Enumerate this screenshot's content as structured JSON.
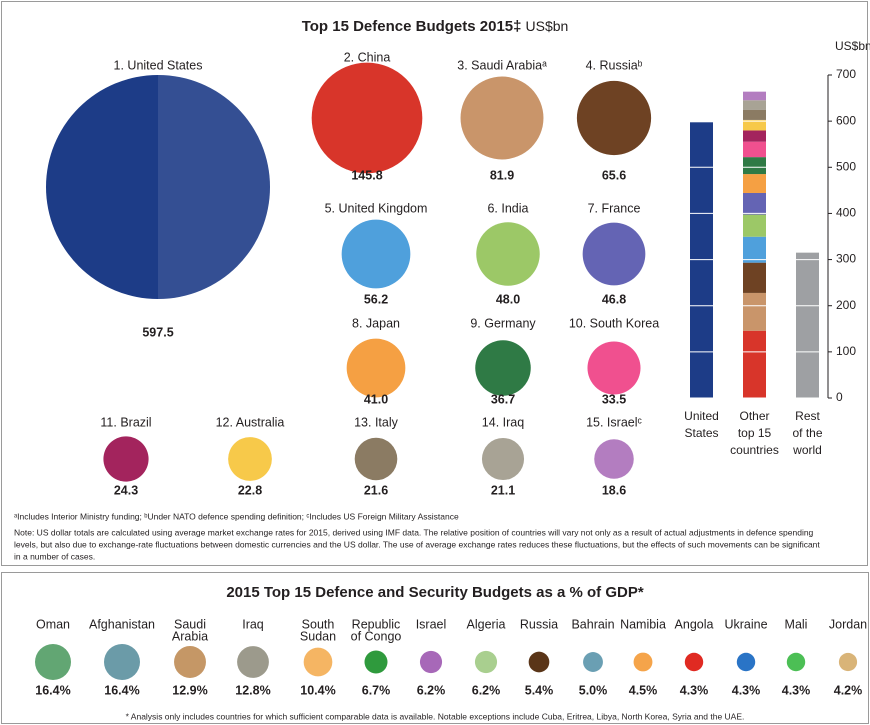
{
  "chart_data": [
    {
      "type": "bubble",
      "title": "Top 15 Defence Budgets 2015‡",
      "unit": "US$bn",
      "categories": [
        "1. United States",
        "2. China",
        "3. Saudi Arabiaᵃ",
        "4. Russiaᵇ",
        "5. United Kingdom",
        "6. India",
        "7. France",
        "8. Japan",
        "9. Germany",
        "10. South Korea",
        "11. Brazil",
        "12. Australia",
        "13. Italy",
        "14. Iraq",
        "15. Israelᶜ"
      ],
      "values": [
        597.5,
        145.8,
        81.9,
        65.6,
        56.2,
        48.0,
        46.8,
        41.0,
        36.7,
        33.5,
        24.3,
        22.8,
        21.6,
        21.1,
        18.6
      ],
      "value_labels": [
        "597.5",
        "145.8",
        "81.9",
        "65.6",
        "56.2",
        "48.0",
        "46.8",
        "41.0",
        "36.7",
        "33.5",
        "24.3",
        "22.8",
        "21.6",
        "21.1",
        "18.6"
      ],
      "colors": [
        "#1d3c87",
        "#d8352a",
        "#c9956a",
        "#6e4223",
        "#4fa0dc",
        "#9cc867",
        "#6464b4",
        "#f5a043",
        "#2f7a45",
        "#f0508f",
        "#a3245d",
        "#f7c94a",
        "#8b7b63",
        "#a8a395",
        "#b37dc0"
      ],
      "notes": [
        "ᵃIncludes Interior Ministry funding; ᵇUnder NATO defence spending definition; ᶜIncludes US Foreign Military Assistance",
        "Note: US dollar totals are calculated using average market exchange rates for 2015, derived using IMF data. The relative position of countries will vary not only as a result of actual adjustments in defence spending",
        "levels, but also due to exchange-rate fluctuations between domestic currencies and the US dollar. The use of average exchange rates reduces these fluctuations, but the effects of such movements can be significant",
        "in a number of cases."
      ]
    },
    {
      "type": "bar",
      "axis_label": "US$bn",
      "categories": [
        [
          "United",
          "States"
        ],
        [
          "Other",
          "top 15",
          "countries"
        ],
        [
          "Rest",
          "of the",
          "world"
        ]
      ],
      "values": [
        597.5,
        null,
        315
      ],
      "colors": [
        "#1d3c87",
        null,
        "#9ea0a3"
      ],
      "ylim": [
        0,
        700
      ],
      "yticks": [
        0,
        100,
        200,
        300,
        400,
        500,
        600,
        700
      ],
      "grid": true
    },
    {
      "type": "bubble-row",
      "title": "2015 Top 15 Defence and Security Budgets as a % of GDP*",
      "categories": [
        [
          "Oman"
        ],
        [
          "Afghanistan"
        ],
        [
          "Saudi",
          "Arabia"
        ],
        [
          "Iraq"
        ],
        [
          "South",
          "Sudan"
        ],
        [
          "Republic",
          "of Congo"
        ],
        [
          "Israel"
        ],
        [
          "Algeria"
        ],
        [
          "Russia"
        ],
        [
          "Bahrain"
        ],
        [
          "Namibia"
        ],
        [
          "Angola"
        ],
        [
          "Ukraine"
        ],
        [
          "Mali"
        ],
        [
          "Jordan"
        ]
      ],
      "values": [
        16.4,
        16.4,
        12.9,
        12.8,
        10.4,
        6.7,
        6.2,
        6.2,
        5.4,
        5.0,
        4.5,
        4.3,
        4.3,
        4.3,
        4.2
      ],
      "value_labels": [
        "16.4%",
        "16.4%",
        "12.9%",
        "12.8%",
        "10.4%",
        "6.7%",
        "6.2%",
        "6.2%",
        "5.4%",
        "5.0%",
        "4.5%",
        "4.3%",
        "4.3%",
        "4.3%",
        "4.2%"
      ],
      "colors": [
        "#62a673",
        "#6b9ba8",
        "#c59766",
        "#9c9a8c",
        "#f5b563",
        "#2f9a3d",
        "#a768b8",
        "#a9cf8f",
        "#5a3518",
        "#6a9fb3",
        "#f5a44a",
        "#e02a22",
        "#2a74c6",
        "#4cbf55",
        "#d9b478"
      ],
      "footnote": "* Analysis only includes countries for which sufficient comparable data is available. Notable exceptions include Cuba, Eritrea, Libya, North Korea, Syria and the UAE."
    }
  ]
}
